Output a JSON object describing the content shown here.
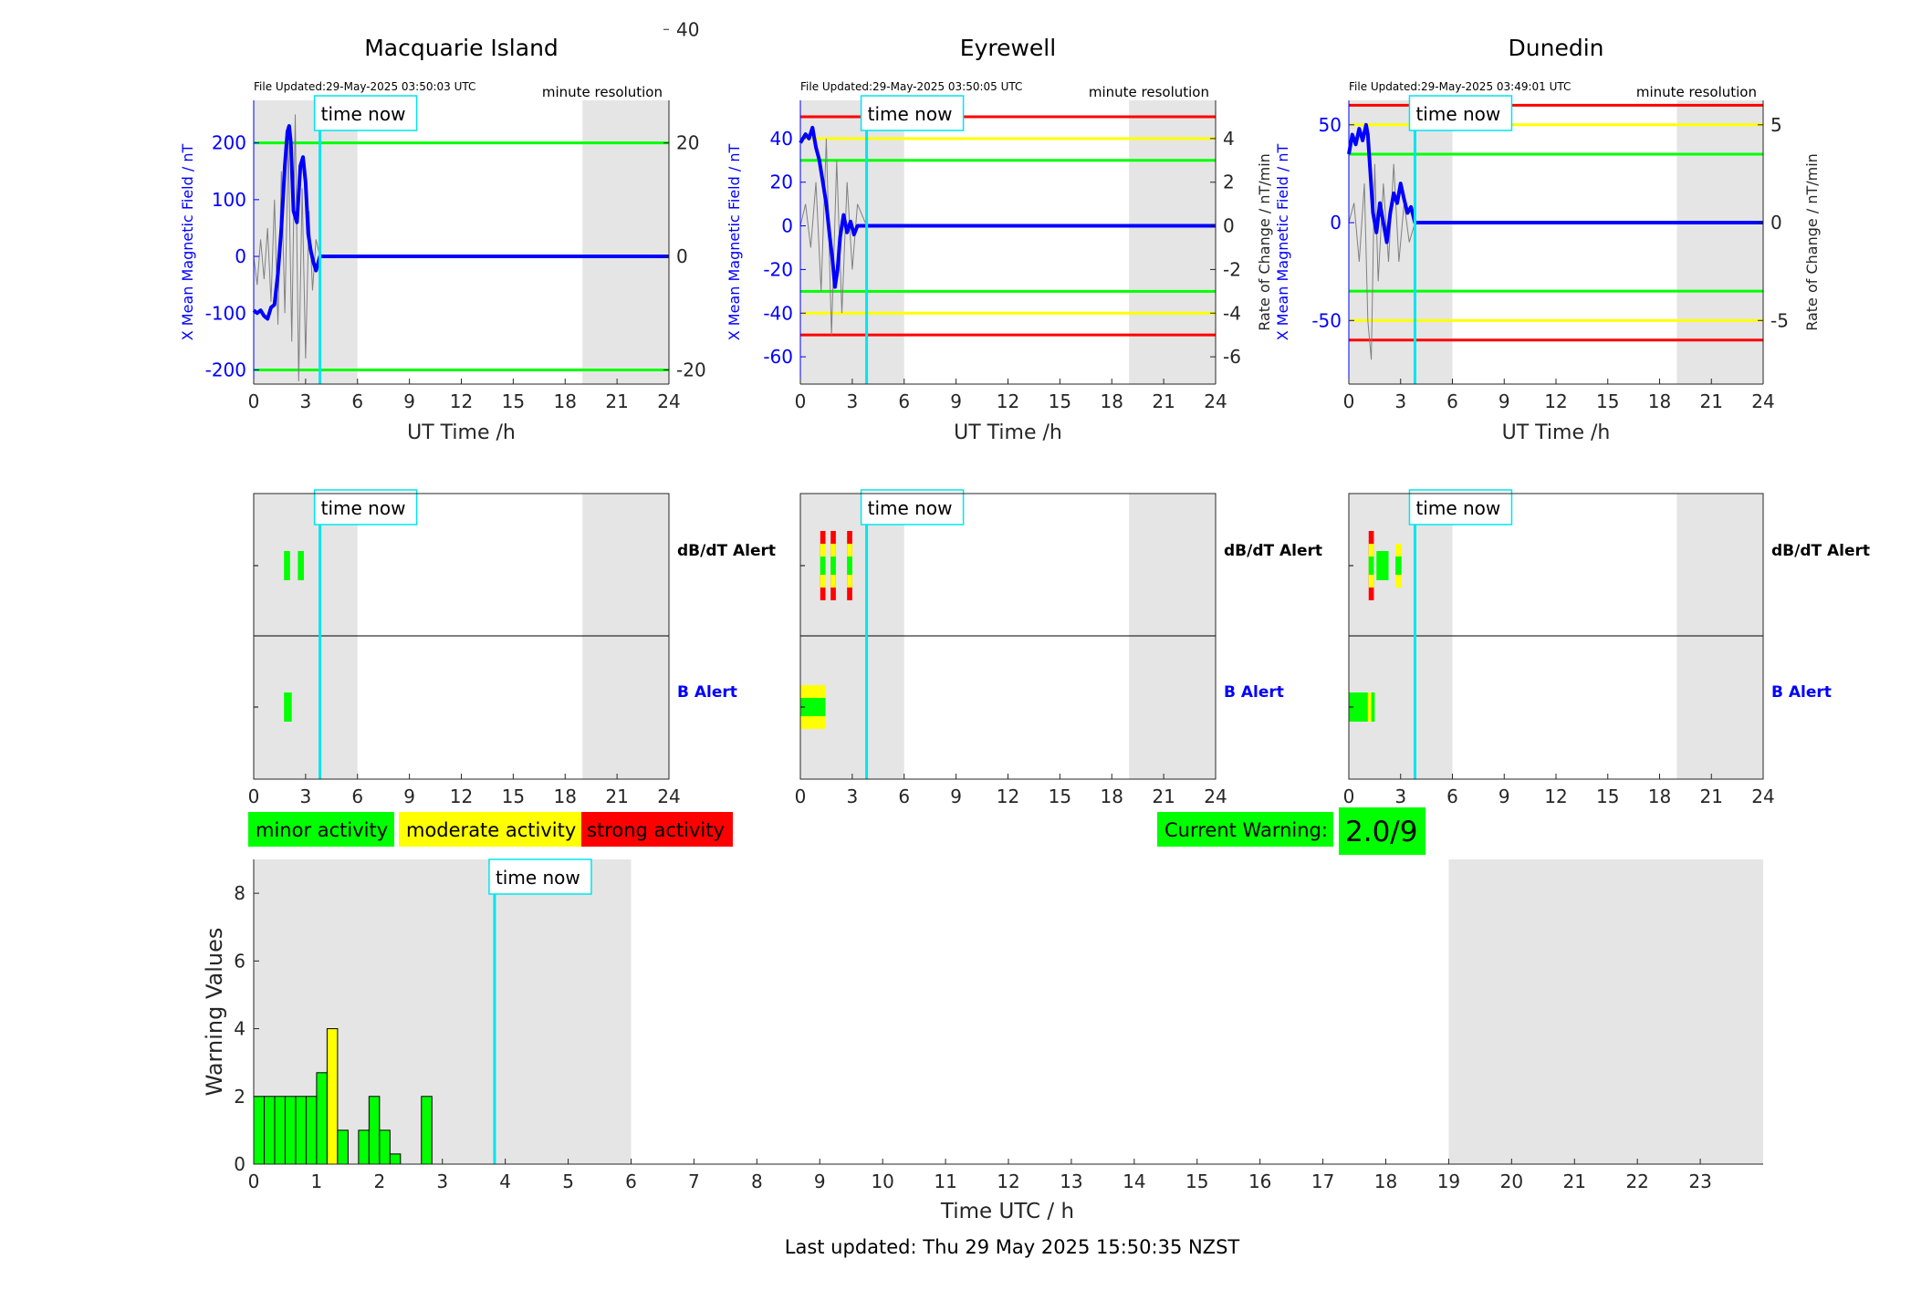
{
  "time_now_hours": 3.83,
  "footer": "Last updated: Thu 29 May 2025 15:50:35 NZST",
  "time_now_label": "time now",
  "resolution_label": "minute resolution",
  "shade_periods": [
    [
      0,
      6
    ],
    [
      19,
      24
    ]
  ],
  "colors": {
    "b_field": "#0000ff",
    "rate": "#808080",
    "time_now": "#00e5ee",
    "minor": "#00ff00",
    "moderate": "#ffff00",
    "strong": "#ff0000",
    "shade": "#e5e5e5"
  },
  "legend": {
    "minor": "minor activity",
    "moderate": "moderate activity",
    "strong": "strong activity"
  },
  "current_warning": {
    "label": "Current Warning:",
    "value": "2.0/9"
  },
  "alert_labels": {
    "dbdt": "dB/dT Alert",
    "b": "B Alert"
  },
  "chart_data": [
    {
      "type": "line",
      "title": "Macquarie Island",
      "file_updated": "File Updated:29-May-2025 03:50:03 UTC",
      "xlabel": "UT Time /h",
      "ylabel_left": "X Mean Magnetic Field / nT",
      "ylabel_right": "",
      "xlim": [
        0,
        24
      ],
      "ylim_left": [
        -225,
        275
      ],
      "ylim_right": [
        -22.5,
        27.5
      ],
      "yticks_left": [
        -200,
        -100,
        0,
        100,
        200
      ],
      "yticks_right": [
        -20,
        0,
        20,
        40
      ],
      "threshold_lines": [
        {
          "value": 200,
          "color": "green"
        },
        {
          "value": -200,
          "color": "green"
        }
      ],
      "b_series": [
        [
          0,
          -95
        ],
        [
          0.2,
          -100
        ],
        [
          0.4,
          -95
        ],
        [
          0.6,
          -105
        ],
        [
          0.8,
          -110
        ],
        [
          1.0,
          -90
        ],
        [
          1.2,
          -85
        ],
        [
          1.4,
          -30
        ],
        [
          1.6,
          50
        ],
        [
          1.8,
          160
        ],
        [
          1.95,
          220
        ],
        [
          2.05,
          230
        ],
        [
          2.15,
          200
        ],
        [
          2.3,
          80
        ],
        [
          2.5,
          60
        ],
        [
          2.7,
          160
        ],
        [
          2.85,
          175
        ],
        [
          3.0,
          130
        ],
        [
          3.15,
          40
        ],
        [
          3.3,
          10
        ],
        [
          3.45,
          -10
        ],
        [
          3.6,
          -25
        ],
        [
          3.83,
          0
        ],
        [
          24,
          0
        ]
      ],
      "rate_series": [
        [
          0,
          0
        ],
        [
          0.2,
          -5
        ],
        [
          0.4,
          3
        ],
        [
          0.6,
          -4
        ],
        [
          0.8,
          5
        ],
        [
          1.0,
          -8
        ],
        [
          1.2,
          10
        ],
        [
          1.4,
          -12
        ],
        [
          1.6,
          15
        ],
        [
          1.8,
          -10
        ],
        [
          2.0,
          20
        ],
        [
          2.2,
          -15
        ],
        [
          2.4,
          25
        ],
        [
          2.6,
          -22
        ],
        [
          2.8,
          12
        ],
        [
          3.0,
          -18
        ],
        [
          3.2,
          8
        ],
        [
          3.4,
          -6
        ],
        [
          3.6,
          3
        ],
        [
          3.83,
          0
        ]
      ],
      "dbdt_alerts": [
        {
          "start": 1.75,
          "end": 2.1,
          "levels": [
            "minor"
          ]
        },
        {
          "start": 2.55,
          "end": 2.9,
          "levels": [
            "minor"
          ]
        }
      ],
      "b_alerts": [
        {
          "start": 1.75,
          "end": 2.2,
          "levels": [
            "minor"
          ]
        }
      ]
    },
    {
      "type": "line",
      "title": "Eyrewell",
      "file_updated": "File Updated:29-May-2025 03:50:05 UTC",
      "xlabel": "UT Time /h",
      "ylabel_left": "X Mean Magnetic Field / nT",
      "ylabel_right": "Rate of Change / nT/min",
      "xlim": [
        0,
        24
      ],
      "ylim_left": [
        -72.5,
        57.5
      ],
      "ylim_right": [
        -7.25,
        5.75
      ],
      "yticks_left": [
        -60,
        -40,
        -20,
        0,
        20,
        40
      ],
      "yticks_right": [
        -6,
        -4,
        -2,
        0,
        2,
        4
      ],
      "threshold_lines": [
        {
          "value": 50,
          "color": "red"
        },
        {
          "value": 40,
          "color": "yellow"
        },
        {
          "value": 30,
          "color": "green"
        },
        {
          "value": -30,
          "color": "green"
        },
        {
          "value": -40,
          "color": "yellow"
        },
        {
          "value": -50,
          "color": "red"
        }
      ],
      "b_series": [
        [
          0,
          38
        ],
        [
          0.3,
          42
        ],
        [
          0.5,
          40
        ],
        [
          0.7,
          45
        ],
        [
          0.9,
          36
        ],
        [
          1.1,
          30
        ],
        [
          1.3,
          20
        ],
        [
          1.5,
          10
        ],
        [
          1.7,
          -5
        ],
        [
          1.85,
          -15
        ],
        [
          2.0,
          -28
        ],
        [
          2.15,
          -20
        ],
        [
          2.3,
          -5
        ],
        [
          2.5,
          5
        ],
        [
          2.7,
          -3
        ],
        [
          2.9,
          2
        ],
        [
          3.1,
          -4
        ],
        [
          3.3,
          0
        ],
        [
          3.83,
          0
        ],
        [
          24,
          0
        ]
      ],
      "rate_series": [
        [
          0,
          0
        ],
        [
          0.3,
          1
        ],
        [
          0.6,
          -1
        ],
        [
          0.9,
          2
        ],
        [
          1.2,
          -3
        ],
        [
          1.5,
          4
        ],
        [
          1.8,
          -5
        ],
        [
          2.1,
          3
        ],
        [
          2.4,
          -4
        ],
        [
          2.7,
          2
        ],
        [
          3.0,
          -2
        ],
        [
          3.3,
          1
        ],
        [
          3.83,
          0
        ]
      ],
      "dbdt_alerts": [
        {
          "start": 1.15,
          "end": 1.45,
          "levels": [
            "strong",
            "moderate",
            "minor"
          ]
        },
        {
          "start": 1.75,
          "end": 2.05,
          "levels": [
            "strong",
            "moderate",
            "minor"
          ]
        },
        {
          "start": 2.7,
          "end": 3.0,
          "levels": [
            "strong",
            "moderate",
            "minor"
          ]
        }
      ],
      "b_alerts": [
        {
          "start": 0,
          "end": 1.45,
          "levels": [
            "moderate",
            "minor"
          ]
        }
      ]
    },
    {
      "type": "line",
      "title": "Dunedin",
      "file_updated": "File Updated:29-May-2025 03:49:01 UTC",
      "xlabel": "UT Time /h",
      "ylabel_left": "X Mean Magnetic Field / nT",
      "ylabel_right": "Rate of Change / nT/min",
      "xlim": [
        0,
        24
      ],
      "ylim_left": [
        -82.5,
        62.5
      ],
      "ylim_right": [
        -8.25,
        6.25
      ],
      "yticks_left": [
        -50,
        0,
        50
      ],
      "yticks_right": [
        -5,
        0,
        5
      ],
      "threshold_lines": [
        {
          "value": 60,
          "color": "red"
        },
        {
          "value": 50,
          "color": "yellow"
        },
        {
          "value": 35,
          "color": "green"
        },
        {
          "value": -35,
          "color": "green"
        },
        {
          "value": -50,
          "color": "yellow"
        },
        {
          "value": -60,
          "color": "red"
        }
      ],
      "b_series": [
        [
          0,
          35
        ],
        [
          0.2,
          45
        ],
        [
          0.4,
          40
        ],
        [
          0.6,
          48
        ],
        [
          0.8,
          42
        ],
        [
          1.0,
          50
        ],
        [
          1.1,
          45
        ],
        [
          1.25,
          25
        ],
        [
          1.4,
          5
        ],
        [
          1.6,
          -5
        ],
        [
          1.8,
          10
        ],
        [
          2.0,
          0
        ],
        [
          2.2,
          -10
        ],
        [
          2.4,
          5
        ],
        [
          2.6,
          15
        ],
        [
          2.8,
          10
        ],
        [
          3.0,
          20
        ],
        [
          3.2,
          12
        ],
        [
          3.4,
          5
        ],
        [
          3.6,
          8
        ],
        [
          3.83,
          0
        ],
        [
          24,
          0
        ]
      ],
      "rate_series": [
        [
          0,
          0
        ],
        [
          0.3,
          1
        ],
        [
          0.6,
          -2
        ],
        [
          0.9,
          2
        ],
        [
          1.1,
          -5
        ],
        [
          1.3,
          -7
        ],
        [
          1.5,
          3
        ],
        [
          1.7,
          -3
        ],
        [
          2.0,
          2
        ],
        [
          2.3,
          -2
        ],
        [
          2.6,
          3
        ],
        [
          2.9,
          -2
        ],
        [
          3.2,
          1
        ],
        [
          3.5,
          -1
        ],
        [
          3.83,
          0
        ]
      ],
      "dbdt_alerts": [
        {
          "start": 1.15,
          "end": 1.45,
          "levels": [
            "strong",
            "moderate",
            "minor"
          ]
        },
        {
          "start": 1.6,
          "end": 2.3,
          "levels": [
            "minor"
          ]
        },
        {
          "start": 2.7,
          "end": 3.05,
          "levels": [
            "moderate",
            "minor"
          ]
        }
      ],
      "b_alerts": [
        {
          "start": 0,
          "end": 1.5,
          "levels": [
            "minor"
          ]
        },
        {
          "start": 1.1,
          "end": 1.3,
          "levels": [
            "moderate"
          ]
        }
      ]
    },
    {
      "type": "bar",
      "title": "",
      "xlabel": "Time UTC / h",
      "ylabel": "Warning Values",
      "xlim": [
        0,
        24
      ],
      "ylim": [
        0,
        9
      ],
      "xticks": [
        0,
        1,
        2,
        3,
        4,
        5,
        6,
        7,
        8,
        9,
        10,
        11,
        12,
        13,
        14,
        15,
        16,
        17,
        18,
        19,
        20,
        21,
        22,
        23
      ],
      "yticks": [
        0,
        2,
        4,
        6,
        8
      ],
      "bar_width": 0.1667,
      "bars": [
        {
          "x": 0.0,
          "value": 2,
          "level": "minor"
        },
        {
          "x": 0.1667,
          "value": 2,
          "level": "minor"
        },
        {
          "x": 0.3333,
          "value": 2,
          "level": "minor"
        },
        {
          "x": 0.5,
          "value": 2,
          "level": "minor"
        },
        {
          "x": 0.6667,
          "value": 2,
          "level": "minor"
        },
        {
          "x": 0.8333,
          "value": 2,
          "level": "minor"
        },
        {
          "x": 1.0,
          "value": 2.7,
          "level": "minor"
        },
        {
          "x": 1.1667,
          "value": 4,
          "level": "moderate"
        },
        {
          "x": 1.3333,
          "value": 1,
          "level": "minor"
        },
        {
          "x": 1.6667,
          "value": 1,
          "level": "minor"
        },
        {
          "x": 1.8333,
          "value": 2,
          "level": "minor"
        },
        {
          "x": 2.0,
          "value": 1,
          "level": "minor"
        },
        {
          "x": 2.1667,
          "value": 0.3,
          "level": "minor"
        },
        {
          "x": 2.6667,
          "value": 2,
          "level": "minor"
        }
      ]
    }
  ]
}
